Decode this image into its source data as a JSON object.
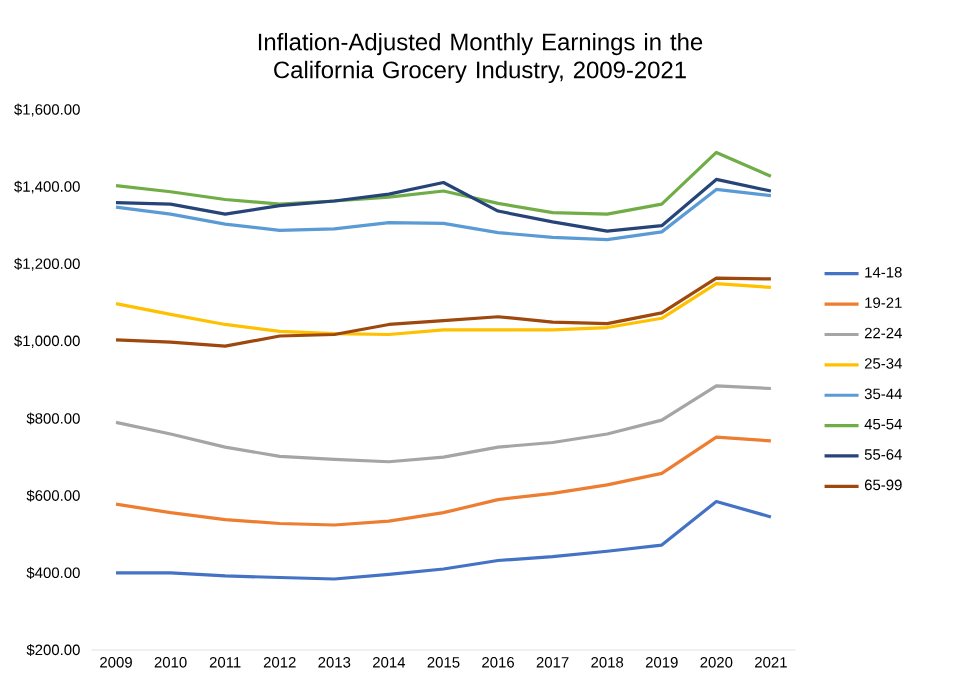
{
  "chart_data": {
    "type": "line",
    "title": "Inflation-Adjusted Monthly Earnings in the California Grocery Industry, 2009-2021",
    "categories": [
      "2009",
      "2010",
      "2011",
      "2012",
      "2013",
      "2014",
      "2015",
      "2016",
      "2017",
      "2018",
      "2019",
      "2020",
      "2021"
    ],
    "ylim": [
      200,
      1600
    ],
    "yticks": [
      {
        "value": 200,
        "label": "$200.00"
      },
      {
        "value": 400,
        "label": "$400.00"
      },
      {
        "value": 600,
        "label": "$600.00"
      },
      {
        "value": 800,
        "label": "$800.00"
      },
      {
        "value": 1000,
        "label": "$1,000.00"
      },
      {
        "value": 1200,
        "label": "$1,200.00"
      },
      {
        "value": 1400,
        "label": "$1,400.00"
      },
      {
        "value": 1600,
        "label": "$1,600.00"
      }
    ],
    "legend": "right",
    "series": [
      {
        "name": "14-18",
        "color": "#4472c4",
        "values": [
          400,
          400,
          392,
          388,
          384,
          396,
          410,
          432,
          442,
          456,
          472,
          585,
          545
        ]
      },
      {
        "name": "19-21",
        "color": "#ed7d31",
        "values": [
          578,
          556,
          538,
          528,
          524,
          534,
          556,
          590,
          606,
          628,
          658,
          752,
          742
        ]
      },
      {
        "name": "22-24",
        "color": "#a5a5a5",
        "values": [
          790,
          760,
          726,
          702,
          694,
          688,
          700,
          726,
          738,
          760,
          796,
          885,
          878
        ]
      },
      {
        "name": "25-34",
        "color": "#ffc000",
        "values": [
          1098,
          1070,
          1044,
          1026,
          1020,
          1018,
          1030,
          1030,
          1030,
          1036,
          1060,
          1150,
          1140
        ]
      },
      {
        "name": "35-44",
        "color": "#5b9bd5",
        "values": [
          1348,
          1330,
          1304,
          1288,
          1292,
          1308,
          1306,
          1282,
          1270,
          1264,
          1284,
          1394,
          1378
        ]
      },
      {
        "name": "45-54",
        "color": "#70ad47",
        "values": [
          1404,
          1388,
          1368,
          1356,
          1364,
          1374,
          1390,
          1358,
          1334,
          1330,
          1356,
          1490,
          1428
        ]
      },
      {
        "name": "55-64",
        "color": "#264478",
        "values": [
          1360,
          1356,
          1330,
          1352,
          1364,
          1382,
          1412,
          1338,
          1310,
          1286,
          1300,
          1420,
          1390
        ]
      },
      {
        "name": "65-99",
        "color": "#9e480e",
        "values": [
          1004,
          998,
          988,
          1014,
          1018,
          1044,
          1054,
          1064,
          1050,
          1046,
          1074,
          1164,
          1162
        ]
      }
    ]
  }
}
